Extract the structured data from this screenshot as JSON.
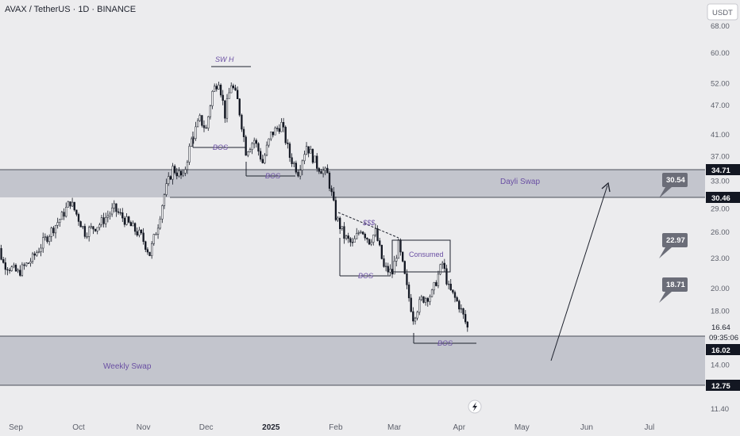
{
  "header": {
    "title": "AVAX / TetherUS · 1D · BINANCE"
  },
  "currency_button": {
    "label": "USDT"
  },
  "current_price": {
    "value": "16.64",
    "countdown": "09:35:06"
  },
  "chart_data": {
    "type": "candlestick",
    "symbol": "AVAX / TetherUS",
    "interval": "1D",
    "exchange": "BINANCE",
    "y_scale": "log",
    "y_ticks": [
      "68.00",
      "60.00",
      "52.00",
      "47.00",
      "41.00",
      "37.00",
      "33.00",
      "29.00",
      "26.00",
      "23.00",
      "20.00",
      "18.00",
      "14.00",
      "11.40"
    ],
    "x_ticks": [
      {
        "label": "Sep",
        "date": "2024-09-01"
      },
      {
        "label": "Oct",
        "date": "2024-10-01"
      },
      {
        "label": "Nov",
        "date": "2024-11-01"
      },
      {
        "label": "Dec",
        "date": "2024-12-01"
      },
      {
        "label": "2025",
        "date": "2025-01-01",
        "bold": true
      },
      {
        "label": "Feb",
        "date": "2025-02-01"
      },
      {
        "label": "Mar",
        "date": "2025-03-01"
      },
      {
        "label": "Apr",
        "date": "2025-04-01"
      },
      {
        "label": "May",
        "date": "2025-05-01"
      },
      {
        "label": "Jun",
        "date": "2025-06-01"
      },
      {
        "label": "Jul",
        "date": "2025-07-01"
      }
    ],
    "price_path": [
      [
        "2024-08-20",
        27.5
      ],
      [
        "2024-08-27",
        22.5
      ],
      [
        "2024-09-03",
        21.5
      ],
      [
        "2024-09-10",
        23.0
      ],
      [
        "2024-09-17",
        25.5
      ],
      [
        "2024-09-24",
        28.0
      ],
      [
        "2024-09-28",
        30.0
      ],
      [
        "2024-10-05",
        26.0
      ],
      [
        "2024-10-12",
        27.0
      ],
      [
        "2024-10-19",
        29.0
      ],
      [
        "2024-10-26",
        27.0
      ],
      [
        "2024-11-01",
        25.5
      ],
      [
        "2024-11-05",
        23.5
      ],
      [
        "2024-11-09",
        27.0
      ],
      [
        "2024-11-12",
        31.0
      ],
      [
        "2024-11-16",
        35.0
      ],
      [
        "2024-11-21",
        33.5
      ],
      [
        "2024-11-25",
        40.0
      ],
      [
        "2024-11-29",
        44.0
      ],
      [
        "2024-12-02",
        42.0
      ],
      [
        "2024-12-05",
        50.0
      ],
      [
        "2024-12-08",
        53.0
      ],
      [
        "2024-12-11",
        45.0
      ],
      [
        "2024-12-14",
        52.0
      ],
      [
        "2024-12-17",
        48.0
      ],
      [
        "2024-12-21",
        38.0
      ],
      [
        "2024-12-25",
        40.0
      ],
      [
        "2024-12-29",
        36.0
      ],
      [
        "2025-01-02",
        41.0
      ],
      [
        "2025-01-07",
        43.0
      ],
      [
        "2025-01-11",
        37.0
      ],
      [
        "2025-01-15",
        34.5
      ],
      [
        "2025-01-19",
        39.0
      ],
      [
        "2025-01-24",
        35.5
      ],
      [
        "2025-01-29",
        34.0
      ],
      [
        "2025-02-02",
        28.0
      ],
      [
        "2025-02-06",
        25.5
      ],
      [
        "2025-02-10",
        24.5
      ],
      [
        "2025-02-14",
        26.5
      ],
      [
        "2025-02-18",
        25.0
      ],
      [
        "2025-02-21",
        26.0
      ],
      [
        "2025-02-25",
        22.0
      ],
      [
        "2025-03-01",
        21.5
      ],
      [
        "2025-03-04",
        24.5
      ],
      [
        "2025-03-08",
        20.0
      ],
      [
        "2025-03-11",
        17.5
      ],
      [
        "2025-03-15",
        19.0
      ],
      [
        "2025-03-20",
        19.5
      ],
      [
        "2025-03-25",
        22.5
      ],
      [
        "2025-03-28",
        20.0
      ],
      [
        "2025-04-02",
        18.5
      ],
      [
        "2025-04-06",
        16.64
      ]
    ],
    "zones": [
      {
        "label": "Dayli Swap",
        "from": 30.46,
        "to": 34.71
      },
      {
        "label": "Weekly Swap",
        "from": 12.75,
        "to": 16.02
      }
    ],
    "annotations": [
      "SW H",
      "BOS",
      "BOS",
      "$$$",
      "Consumed",
      "BOS",
      "BOS"
    ],
    "price_levels": [
      {
        "value": "34.71",
        "kind": "line"
      },
      {
        "value": "30.46",
        "kind": "line"
      },
      {
        "value": "16.02",
        "kind": "line"
      },
      {
        "value": "12.75",
        "kind": "line"
      }
    ],
    "targets": [
      "30.54",
      "22.97",
      "18.71"
    ],
    "colors": {
      "candle": "#131722",
      "zone": "#b6b8c2",
      "label_dark": "#131722",
      "badge": "#6b6d78",
      "annotation": "#6a4fa3",
      "background": "#ececee"
    }
  }
}
